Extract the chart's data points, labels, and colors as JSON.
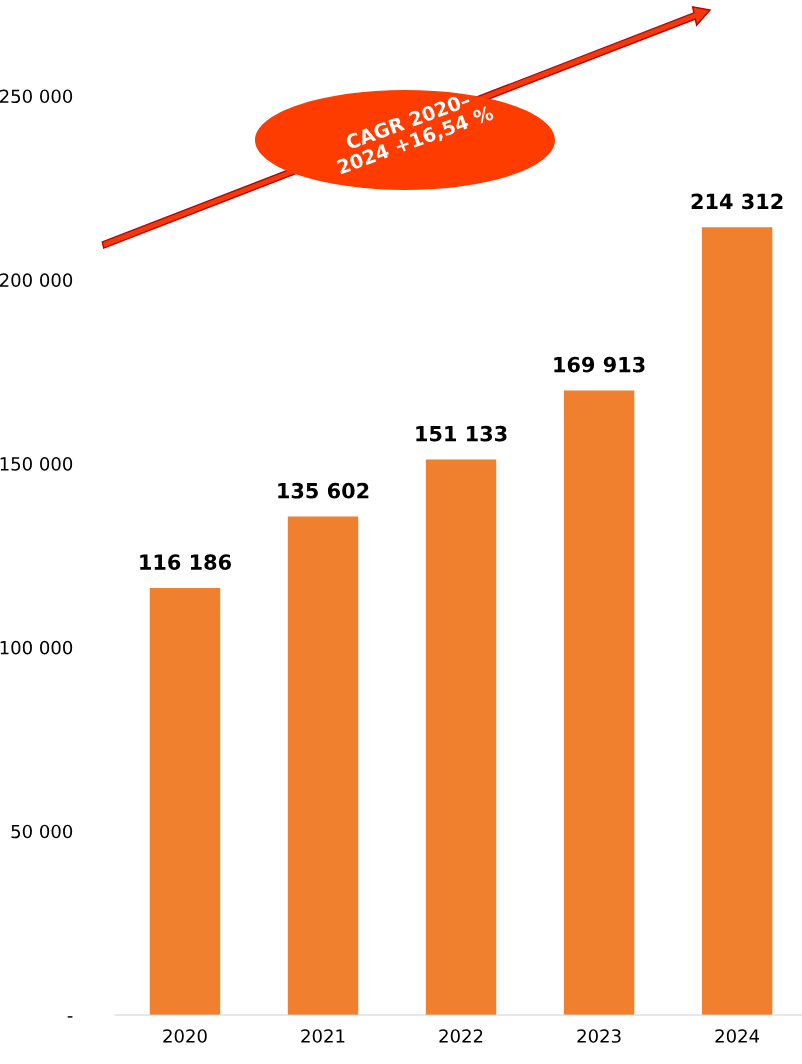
{
  "chart_data": {
    "type": "bar",
    "categories": [
      "2020",
      "2021",
      "2022",
      "2023",
      "2024"
    ],
    "values": [
      116186,
      135602,
      151133,
      169913,
      214312
    ],
    "value_labels": [
      "116 186",
      "135 602",
      "151 133",
      "169 913",
      "214 312"
    ],
    "color": "#f07f2e",
    "ylim": [
      0,
      250000
    ],
    "yticks": [
      {
        "value": 0,
        "label": "-"
      },
      {
        "value": 50000,
        "label": "50 000"
      },
      {
        "value": 100000,
        "label": "100 000"
      },
      {
        "value": 150000,
        "label": "150 000"
      },
      {
        "value": 200000,
        "label": "200 000"
      },
      {
        "value": 250000,
        "label": "250 000"
      }
    ],
    "grid": false,
    "annotations": [
      "CAGR 2020–\n2024 +16,54 %"
    ]
  }
}
